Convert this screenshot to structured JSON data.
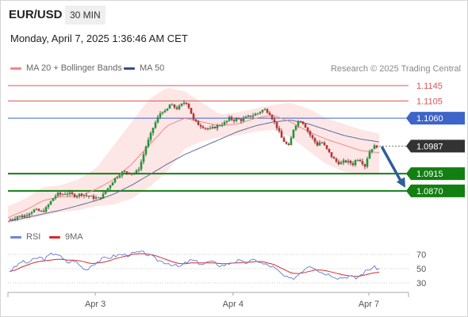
{
  "header": {
    "symbol": "EUR/USD",
    "timeframe": "30 MIN",
    "datetime": "Monday, April 7, 2025 1:36:46 AM CET"
  },
  "legend": {
    "ma20_label": "MA 20 + Bollinger Bands",
    "ma50_label": "MA 50",
    "credit": "Research © 2025 Trading Central",
    "rsi_label": "RSI",
    "ma9_label": "9MA"
  },
  "colors": {
    "ma20": "#f08a84",
    "band": "#fde0e0",
    "ma50": "#5b6f98",
    "up": "#1a9b34",
    "down": "#c0302f",
    "resistance": "#e05151",
    "pivot": "#3d64c8",
    "support": "#137f13",
    "rsi": "#6f86d6",
    "rsi_ma": "#d82a2a",
    "arrow": "#2c5f9b"
  },
  "chart_data": [
    {
      "type": "candlestick",
      "x_labels": [
        "Apr 3",
        "Apr 4",
        "Apr 7"
      ],
      "y_range": [
        1.0785,
        1.1172
      ],
      "levels": [
        {
          "value": 1.1145,
          "label": "1.1145",
          "kind": "resistance"
        },
        {
          "value": 1.1105,
          "label": "1.1105",
          "kind": "resistance"
        },
        {
          "value": 1.106,
          "label": "1.1060",
          "kind": "pivot"
        },
        {
          "value": 1.0987,
          "label": "1.0987",
          "kind": "current"
        },
        {
          "value": 1.0915,
          "label": "1.0915",
          "kind": "support"
        },
        {
          "value": 1.087,
          "label": "1.0870",
          "kind": "support"
        }
      ],
      "close_path": [
        1.0795,
        1.08,
        1.0805,
        1.0803,
        1.0808,
        1.0815,
        1.082,
        1.0818,
        1.0815,
        1.0825,
        1.084,
        1.0855,
        1.0862,
        1.086,
        1.0865,
        1.0862,
        1.0858,
        1.086,
        1.0862,
        1.0858,
        1.0855,
        1.0852,
        1.085,
        1.0855,
        1.087,
        1.0885,
        1.09,
        1.091,
        1.0918,
        1.092,
        1.0917,
        1.0916,
        1.0922,
        1.095,
        1.0985,
        1.101,
        1.104,
        1.106,
        1.108,
        1.1075,
        1.1095,
        1.109,
        1.1085,
        1.1095,
        1.1105,
        1.1085,
        1.1055,
        1.1045,
        1.104,
        1.1035,
        1.103,
        1.1035,
        1.104,
        1.1045,
        1.1048,
        1.106,
        1.1055,
        1.1058,
        1.1055,
        1.106,
        1.1065,
        1.1068,
        1.1072,
        1.108,
        1.1082,
        1.1075,
        1.1055,
        1.1035,
        1.101,
        1.0995,
        1.0985,
        1.103,
        1.105,
        1.1055,
        1.104,
        1.102,
        1.1005,
        1.099,
        1.1,
        1.0985,
        1.097,
        1.0955,
        1.0945,
        1.0942,
        1.0948,
        1.0945,
        1.094,
        1.0955,
        1.095,
        1.0935,
        1.097,
        1.0985,
        1.0987
      ],
      "ma50_path": [
        1.079,
        1.08,
        1.081,
        1.082,
        1.0832,
        1.0845,
        1.0862,
        1.0885,
        1.0912,
        1.094,
        1.0965,
        1.0985,
        1.1005,
        1.1025,
        1.104,
        1.105,
        1.1055,
        1.1045,
        1.103,
        1.1015,
        1.1005,
        1.0998
      ],
      "ma20_path": [
        1.08,
        1.082,
        1.0845,
        1.0855,
        1.0855,
        1.0875,
        1.09,
        1.094,
        1.099,
        1.104,
        1.106,
        1.105,
        1.104,
        1.1045,
        1.106,
        1.1068,
        1.105,
        1.1025,
        1.1005,
        1.099,
        1.0975,
        1.097
      ],
      "band_upper_path": [
        1.083,
        1.085,
        1.088,
        1.0885,
        1.09,
        1.093,
        1.099,
        1.105,
        1.111,
        1.114,
        1.113,
        1.11,
        1.107,
        1.1075,
        1.1085,
        1.1095,
        1.11,
        1.1085,
        1.106,
        1.1045,
        1.103,
        1.102
      ],
      "band_lower_path": [
        1.0785,
        1.0795,
        1.0805,
        1.0815,
        1.082,
        1.083,
        1.0835,
        1.085,
        1.088,
        1.092,
        1.098,
        1.1,
        1.101,
        1.1015,
        1.1025,
        1.103,
        1.101,
        1.0975,
        1.094,
        1.092,
        1.0915,
        1.0915
      ],
      "forecast_arrow": {
        "from": 1.0987,
        "to": 1.087
      }
    },
    {
      "type": "line",
      "title": "RSI",
      "y_ticks": [
        70,
        50,
        30
      ],
      "y_range": [
        20,
        80
      ],
      "series": [
        {
          "name": "RSI",
          "values": [
            47,
            52,
            60,
            58,
            62,
            66,
            63,
            70,
            72,
            64,
            58,
            62,
            54,
            48,
            55,
            60,
            64,
            66,
            68,
            70,
            69,
            71,
            73,
            72,
            68,
            63,
            60,
            58,
            55,
            52,
            58,
            62,
            59,
            56,
            60,
            58,
            54,
            56,
            59,
            61,
            58,
            60,
            63,
            57,
            55,
            52,
            45,
            38,
            35,
            40,
            48,
            55,
            52,
            45,
            43,
            41,
            37,
            38,
            40,
            36,
            42,
            48,
            52,
            50
          ]
        },
        {
          "name": "9MA",
          "values": [
            46,
            48,
            52,
            55,
            58,
            60,
            61,
            62,
            63,
            63,
            62,
            62,
            61,
            59,
            57,
            58,
            59,
            61,
            64,
            66,
            68,
            70,
            71,
            71,
            70,
            68,
            65,
            62,
            59,
            57,
            57,
            58,
            58,
            58,
            58,
            58,
            57,
            57,
            58,
            58,
            59,
            59,
            60,
            60,
            58,
            56,
            52,
            48,
            44,
            43,
            44,
            46,
            48,
            48,
            47,
            45,
            43,
            41,
            40,
            39,
            40,
            42,
            44,
            45
          ]
        }
      ]
    }
  ]
}
